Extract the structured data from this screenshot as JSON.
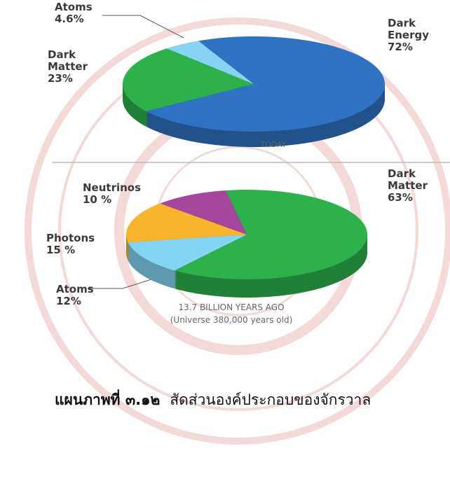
{
  "chart_data": [
    {
      "type": "pie",
      "subtitle": "TODAY",
      "categories": [
        "Dark Energy",
        "Dark Matter",
        "Atoms"
      ],
      "values": [
        72,
        23,
        4.6
      ],
      "value_labels": [
        "72%",
        "23%",
        "4.6%"
      ],
      "colors": [
        "#2f72c2",
        "#2db24b",
        "#86d3f3"
      ]
    },
    {
      "type": "pie",
      "subtitle": "13.7 BILLION YEARS AGO",
      "annotation": "(Universe 380,000 years old)",
      "categories": [
        "Dark Matter",
        "Atoms",
        "Photons",
        "Neutrinos"
      ],
      "values": [
        63,
        12,
        15,
        10
      ],
      "value_labels": [
        "63%",
        "12%",
        "15 %",
        "10 %"
      ],
      "colors": [
        "#2db24b",
        "#84d5f4",
        "#f8b42c",
        "#a4479d"
      ]
    }
  ],
  "caption": {
    "label": "แผนภาพที่ ๓.๑๒",
    "text": "สัดส่วนองค์ประกอบของจักรวาล"
  }
}
